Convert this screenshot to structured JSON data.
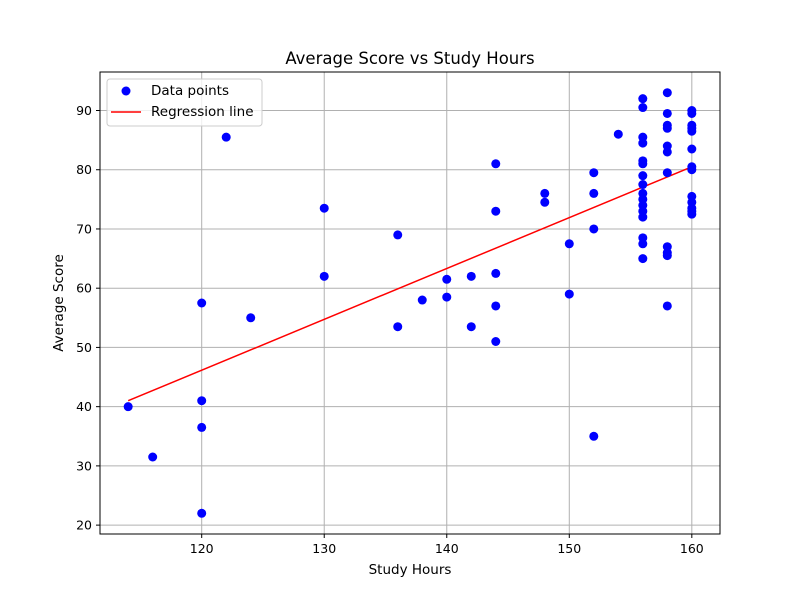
{
  "chart_data": {
    "type": "scatter",
    "title": "Average Score vs Study Hours",
    "xlabel": "Study Hours",
    "ylabel": "Average Score",
    "xlim": [
      111.7,
      162.3
    ],
    "ylim": [
      18.5,
      96.5
    ],
    "xticks": [
      120,
      130,
      140,
      150,
      160
    ],
    "yticks": [
      20,
      30,
      40,
      50,
      60,
      70,
      80,
      90
    ],
    "grid": true,
    "legend_position": "top-left",
    "legend": [
      "Data points",
      "Regression line"
    ],
    "colors": {
      "points": "#0000ff",
      "line": "#ff0000"
    },
    "points": [
      [
        114,
        40
      ],
      [
        116,
        31.5
      ],
      [
        120,
        57.5
      ],
      [
        120,
        41
      ],
      [
        120,
        36.5
      ],
      [
        120,
        22
      ],
      [
        122,
        85.5
      ],
      [
        124,
        55
      ],
      [
        130,
        73.5
      ],
      [
        130,
        62
      ],
      [
        136,
        69
      ],
      [
        136,
        53.5
      ],
      [
        138,
        58
      ],
      [
        140,
        61.5
      ],
      [
        140,
        58.5
      ],
      [
        142,
        62
      ],
      [
        142,
        53.5
      ],
      [
        144,
        81
      ],
      [
        144,
        73
      ],
      [
        144,
        62.5
      ],
      [
        144,
        57
      ],
      [
        144,
        51
      ],
      [
        148,
        76
      ],
      [
        148,
        74.5
      ],
      [
        150,
        67.5
      ],
      [
        150,
        59
      ],
      [
        152,
        79.5
      ],
      [
        152,
        76
      ],
      [
        152,
        70
      ],
      [
        152,
        35
      ],
      [
        154,
        86
      ],
      [
        156,
        92
      ],
      [
        156,
        90.5
      ],
      [
        156,
        85.5
      ],
      [
        156,
        84.5
      ],
      [
        156,
        81.5
      ],
      [
        156,
        81
      ],
      [
        156,
        79
      ],
      [
        156,
        77.5
      ],
      [
        156,
        76
      ],
      [
        156,
        75
      ],
      [
        156,
        74
      ],
      [
        156,
        73
      ],
      [
        156,
        72
      ],
      [
        156,
        68.5
      ],
      [
        156,
        67.5
      ],
      [
        156,
        65
      ],
      [
        158,
        93
      ],
      [
        158,
        89.5
      ],
      [
        158,
        87.5
      ],
      [
        158,
        87
      ],
      [
        158,
        84
      ],
      [
        158,
        83
      ],
      [
        158,
        79.5
      ],
      [
        158,
        67
      ],
      [
        158,
        66
      ],
      [
        158,
        65.5
      ],
      [
        158,
        57
      ],
      [
        160,
        90
      ],
      [
        160,
        89.5
      ],
      [
        160,
        87.5
      ],
      [
        160,
        87
      ],
      [
        160,
        86.5
      ],
      [
        160,
        83.5
      ],
      [
        160,
        80.5
      ],
      [
        160,
        80
      ],
      [
        160,
        75.5
      ],
      [
        160,
        74.5
      ],
      [
        160,
        73.5
      ],
      [
        160,
        73
      ],
      [
        160,
        72.5
      ]
    ],
    "regression_line": [
      [
        114,
        41
      ],
      [
        160,
        80.5
      ]
    ]
  }
}
